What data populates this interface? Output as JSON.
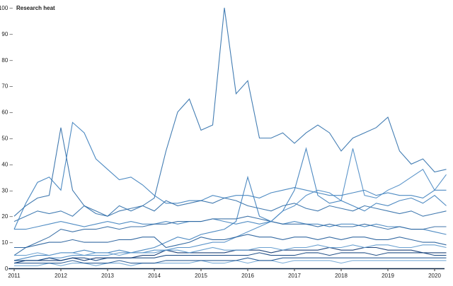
{
  "chart_data": {
    "type": "line",
    "title": "",
    "ylabel": "Research heat",
    "xlabel": "",
    "ylim": [
      0,
      100
    ],
    "xlim": [
      "2011-01",
      "2020-04"
    ],
    "grid": false,
    "legend": "none",
    "yticks": [
      0,
      10,
      20,
      30,
      40,
      50,
      60,
      70,
      80,
      90,
      100
    ],
    "xticks": [
      "2011",
      "2012",
      "2013",
      "2014",
      "2015",
      "2016",
      "2017",
      "2018",
      "2019",
      "2020"
    ],
    "x": [
      "2011-01",
      "2011-04",
      "2011-07",
      "2011-10",
      "2012-01",
      "2012-04",
      "2012-07",
      "2012-10",
      "2013-01",
      "2013-04",
      "2013-07",
      "2013-10",
      "2014-01",
      "2014-04",
      "2014-07",
      "2014-10",
      "2015-01",
      "2015-04",
      "2015-07",
      "2015-10",
      "2016-01",
      "2016-04",
      "2016-07",
      "2016-10",
      "2017-01",
      "2017-04",
      "2017-07",
      "2017-10",
      "2018-01",
      "2018-04",
      "2018-07",
      "2018-10",
      "2019-01",
      "2019-04",
      "2019-07",
      "2019-10",
      "2020-01",
      "2020-04"
    ],
    "colors": [
      "#2f6fab",
      "#3a7dbb",
      "#2c6aa6",
      "#3d80bd",
      "#2b65a0",
      "#3a7cba",
      "#4a8ac4",
      "#08306b",
      "#1f5a98",
      "#5b97cc",
      "#0b3d7a",
      "#6aa3d3",
      "#174e8c"
    ],
    "series": [
      {
        "values": [
          18,
          20,
          22,
          21,
          22,
          20,
          24,
          21,
          20,
          24,
          22,
          24,
          27,
          45,
          60,
          65,
          53,
          55,
          100,
          67,
          72,
          50,
          50,
          52,
          48,
          52,
          55,
          52,
          45,
          50,
          52,
          54,
          58,
          45,
          40,
          42,
          37,
          38
        ]
      },
      {
        "values": [
          15,
          25,
          33,
          35,
          30,
          56,
          52,
          42,
          38,
          34,
          35,
          32,
          28,
          25,
          25,
          26,
          26,
          28,
          27,
          28,
          28,
          27,
          29,
          30,
          31,
          30,
          29,
          28,
          28,
          29,
          30,
          28,
          29,
          28,
          28,
          27,
          30,
          30
        ]
      },
      {
        "values": [
          20,
          24,
          27,
          28,
          54,
          30,
          24,
          22,
          20,
          22,
          23,
          24,
          22,
          26,
          24,
          25,
          26,
          25,
          27,
          26,
          24,
          23,
          22,
          24,
          25,
          23,
          22,
          24,
          23,
          22,
          24,
          23,
          22,
          21,
          22,
          20,
          21,
          22
        ]
      },
      {
        "values": [
          15,
          15,
          16,
          17,
          18,
          17,
          16,
          17,
          18,
          17,
          18,
          17,
          17,
          18,
          17,
          18,
          18,
          19,
          18,
          17,
          18,
          17,
          18,
          17,
          18,
          17,
          17,
          16,
          17,
          17,
          16,
          17,
          16,
          16,
          15,
          15,
          14,
          13
        ]
      },
      {
        "values": [
          5,
          8,
          10,
          12,
          15,
          14,
          15,
          15,
          16,
          15,
          16,
          16,
          17,
          17,
          18,
          18,
          18,
          19,
          19,
          19,
          20,
          19,
          18,
          17,
          17,
          17,
          16,
          17,
          16,
          16,
          17,
          16,
          15,
          16,
          15,
          15,
          16,
          16
        ]
      },
      {
        "values": [
          3,
          4,
          5,
          5,
          6,
          6,
          7,
          6,
          6,
          7,
          6,
          7,
          8,
          10,
          12,
          11,
          13,
          14,
          15,
          18,
          35,
          20,
          18,
          22,
          30,
          46,
          28,
          25,
          26,
          24,
          22,
          25,
          24,
          26,
          27,
          25,
          28,
          24
        ]
      },
      {
        "values": [
          2,
          3,
          3,
          4,
          4,
          5,
          5,
          5,
          5,
          6,
          6,
          6,
          7,
          7,
          8,
          8,
          9,
          10,
          10,
          12,
          14,
          16,
          18,
          22,
          24,
          28,
          30,
          29,
          26,
          46,
          28,
          27,
          30,
          32,
          35,
          38,
          30,
          36
        ]
      },
      {
        "values": [
          2,
          3,
          3,
          3,
          3,
          4,
          3,
          4,
          4,
          4,
          4,
          5,
          5,
          7,
          6,
          6,
          6,
          6,
          6,
          7,
          7,
          7,
          6,
          7,
          7,
          7,
          7,
          8,
          7,
          7,
          8,
          8,
          7,
          7,
          7,
          6,
          6,
          6
        ]
      },
      {
        "values": [
          8,
          8,
          9,
          10,
          10,
          11,
          10,
          10,
          10,
          11,
          11,
          12,
          12,
          8,
          9,
          10,
          12,
          11,
          11,
          12,
          13,
          12,
          12,
          11,
          12,
          12,
          11,
          12,
          11,
          12,
          12,
          11,
          11,
          12,
          11,
          10,
          10,
          9
        ]
      },
      {
        "values": [
          5,
          5,
          6,
          5,
          6,
          6,
          5,
          6,
          6,
          5,
          6,
          6,
          6,
          7,
          7,
          6,
          7,
          8,
          7,
          7,
          7,
          8,
          8,
          7,
          8,
          8,
          9,
          8,
          8,
          9,
          8,
          9,
          9,
          8,
          8,
          9,
          9,
          8
        ]
      },
      {
        "values": [
          3,
          3,
          3,
          4,
          3,
          4,
          4,
          3,
          4,
          4,
          4,
          4,
          4,
          5,
          5,
          5,
          5,
          5,
          5,
          5,
          5,
          6,
          5,
          5,
          5,
          6,
          6,
          5,
          6,
          6,
          6,
          5,
          6,
          6,
          6,
          6,
          5,
          5
        ]
      },
      {
        "values": [
          1,
          1,
          1,
          2,
          1,
          2,
          2,
          1,
          2,
          2,
          1,
          2,
          2,
          2,
          2,
          2,
          3,
          2,
          2,
          3,
          2,
          3,
          3,
          2,
          3,
          3,
          3,
          3,
          2,
          3,
          3,
          3,
          3,
          3,
          3,
          3,
          3,
          3
        ]
      },
      {
        "values": [
          2,
          2,
          2,
          2,
          2,
          3,
          2,
          2,
          2,
          3,
          2,
          2,
          2,
          3,
          3,
          3,
          3,
          3,
          3,
          3,
          4,
          3,
          3,
          4,
          4,
          4,
          4,
          4,
          4,
          4,
          4,
          4,
          4,
          4,
          4,
          4,
          4,
          4
        ]
      }
    ]
  }
}
